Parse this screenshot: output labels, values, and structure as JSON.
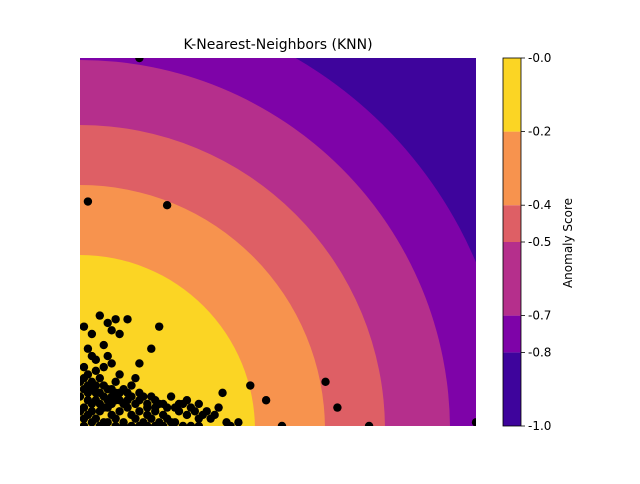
{
  "chart_data": {
    "type": "contour",
    "title": "K-Nearest-Neighbors (KNN)",
    "xlabel": "",
    "ylabel": "",
    "grid": false,
    "colorbar": {
      "label": "Anomaly Score",
      "range": [
        -1.0,
        0.0
      ],
      "levels": [
        -1.0,
        -0.8,
        -0.7,
        -0.5,
        -0.4,
        -0.2,
        -0.0
      ],
      "tick_labels": [
        "-1.0",
        "-0.8",
        "-0.7",
        "-0.5",
        "-0.4",
        "-0.2",
        "-0.0"
      ],
      "colors": [
        "#3e049c",
        "#7e03a8",
        "#b52f8c",
        "#de5f65",
        "#f7934e",
        "#fbd524"
      ]
    },
    "points_color": "#000000",
    "points": [
      [
        0.02,
        0.61
      ],
      [
        0.22,
        0.6
      ],
      [
        0.15,
        1.0
      ],
      [
        0.01,
        0.27
      ],
      [
        0.03,
        0.25
      ],
      [
        0.05,
        0.3
      ],
      [
        0.07,
        0.28
      ],
      [
        0.08,
        0.26
      ],
      [
        0.09,
        0.29
      ],
      [
        0.1,
        0.25
      ],
      [
        0.12,
        0.29
      ],
      [
        0.2,
        0.27
      ],
      [
        0.18,
        0.21
      ],
      [
        0.02,
        0.21
      ],
      [
        0.03,
        0.19
      ],
      [
        0.04,
        0.18
      ],
      [
        0.06,
        0.22
      ],
      [
        0.07,
        0.19
      ],
      [
        0.08,
        0.17
      ],
      [
        0.01,
        0.16
      ],
      [
        0.02,
        0.14
      ],
      [
        0.04,
        0.15
      ],
      [
        0.05,
        0.13
      ],
      [
        0.06,
        0.16
      ],
      [
        0.03,
        0.12
      ],
      [
        0.01,
        0.1
      ],
      [
        0.02,
        0.09
      ],
      [
        0.05,
        0.09
      ],
      [
        0.06,
        0.11
      ],
      [
        0.07,
        0.1
      ],
      [
        0.09,
        0.12
      ],
      [
        0.1,
        0.14
      ],
      [
        0.14,
        0.13
      ],
      [
        0.15,
        0.17
      ],
      [
        0.16,
        0.08
      ],
      [
        0.13,
        0.11
      ],
      [
        0.11,
        0.1
      ],
      [
        0.12,
        0.09
      ],
      [
        0.19,
        0.07
      ],
      [
        0.2,
        0.06
      ],
      [
        0.23,
        0.08
      ],
      [
        0.24,
        0.05
      ],
      [
        0.25,
        0.04
      ],
      [
        0.26,
        0.06
      ],
      [
        0.27,
        0.03
      ],
      [
        0.28,
        0.05
      ],
      [
        0.3,
        0.02
      ],
      [
        0.32,
        0.04
      ],
      [
        0.33,
        0.02
      ],
      [
        0.35,
        0.05
      ],
      [
        0.37,
        0.01
      ],
      [
        0.38,
        0.0
      ],
      [
        0.4,
        0.01
      ],
      [
        0.36,
        0.09
      ],
      [
        0.43,
        0.11
      ],
      [
        0.47,
        0.07
      ],
      [
        0.62,
        0.12
      ],
      [
        0.65,
        0.05
      ],
      [
        0.51,
        0.0
      ],
      [
        0.73,
        0.0
      ],
      [
        1.0,
        0.01
      ],
      [
        0.01,
        0.05
      ],
      [
        0.02,
        0.03
      ],
      [
        0.03,
        0.06
      ],
      [
        0.04,
        0.02
      ],
      [
        0.05,
        0.04
      ],
      [
        0.06,
        0.01
      ],
      [
        0.07,
        0.05
      ],
      [
        0.08,
        0.03
      ],
      [
        0.09,
        0.02
      ],
      [
        0.1,
        0.04
      ],
      [
        0.11,
        0.01
      ],
      [
        0.12,
        0.05
      ],
      [
        0.13,
        0.03
      ],
      [
        0.14,
        0.02
      ],
      [
        0.15,
        0.04
      ],
      [
        0.16,
        0.01
      ],
      [
        0.17,
        0.03
      ],
      [
        0.18,
        0.02
      ],
      [
        0.19,
        0.04
      ],
      [
        0.2,
        0.01
      ],
      [
        0.21,
        0.03
      ],
      [
        0.22,
        0.02
      ],
      [
        0.23,
        0.01
      ],
      [
        0.0,
        0.08
      ],
      [
        0.0,
        0.04
      ],
      [
        0.01,
        0.02
      ],
      [
        0.02,
        0.07
      ],
      [
        0.03,
        0.04
      ],
      [
        0.04,
        0.07
      ],
      [
        0.05,
        0.06
      ],
      [
        0.06,
        0.05
      ],
      [
        0.07,
        0.07
      ],
      [
        0.08,
        0.06
      ],
      [
        0.09,
        0.07
      ],
      [
        0.1,
        0.07
      ],
      [
        0.11,
        0.06
      ],
      [
        0.12,
        0.07
      ],
      [
        0.14,
        0.06
      ],
      [
        0.15,
        0.07
      ],
      [
        0.17,
        0.06
      ],
      [
        0.18,
        0.08
      ],
      [
        0.21,
        0.06
      ],
      [
        0.22,
        0.05
      ],
      [
        0.27,
        0.07
      ],
      [
        0.3,
        0.06
      ],
      [
        0.31,
        0.03
      ],
      [
        0.34,
        0.03
      ],
      [
        0.0,
        0.12
      ],
      [
        0.01,
        0.13
      ],
      [
        0.03,
        0.1
      ],
      [
        0.04,
        0.11
      ],
      [
        0.08,
        0.1
      ],
      [
        0.09,
        0.09
      ],
      [
        0.02,
        0.11
      ],
      [
        0.04,
        0.09
      ],
      [
        0.06,
        0.08
      ],
      [
        0.08,
        0.08
      ],
      [
        0.1,
        0.09
      ],
      [
        0.13,
        0.08
      ],
      [
        0.15,
        0.09
      ],
      [
        0.17,
        0.05
      ],
      [
        0.19,
        0.05
      ],
      [
        0.25,
        0.06
      ],
      [
        0.29,
        0.04
      ],
      [
        0.01,
        0.0
      ],
      [
        0.03,
        0.01
      ],
      [
        0.05,
        0.0
      ],
      [
        0.07,
        0.01
      ],
      [
        0.09,
        0.0
      ],
      [
        0.11,
        0.0
      ],
      [
        0.13,
        0.0
      ],
      [
        0.15,
        0.0
      ],
      [
        0.17,
        0.0
      ],
      [
        0.19,
        0.0
      ],
      [
        0.21,
        0.0
      ],
      [
        0.24,
        0.01
      ],
      [
        0.26,
        0.0
      ],
      [
        0.28,
        0.0
      ],
      [
        0.3,
        0.0
      ]
    ]
  }
}
